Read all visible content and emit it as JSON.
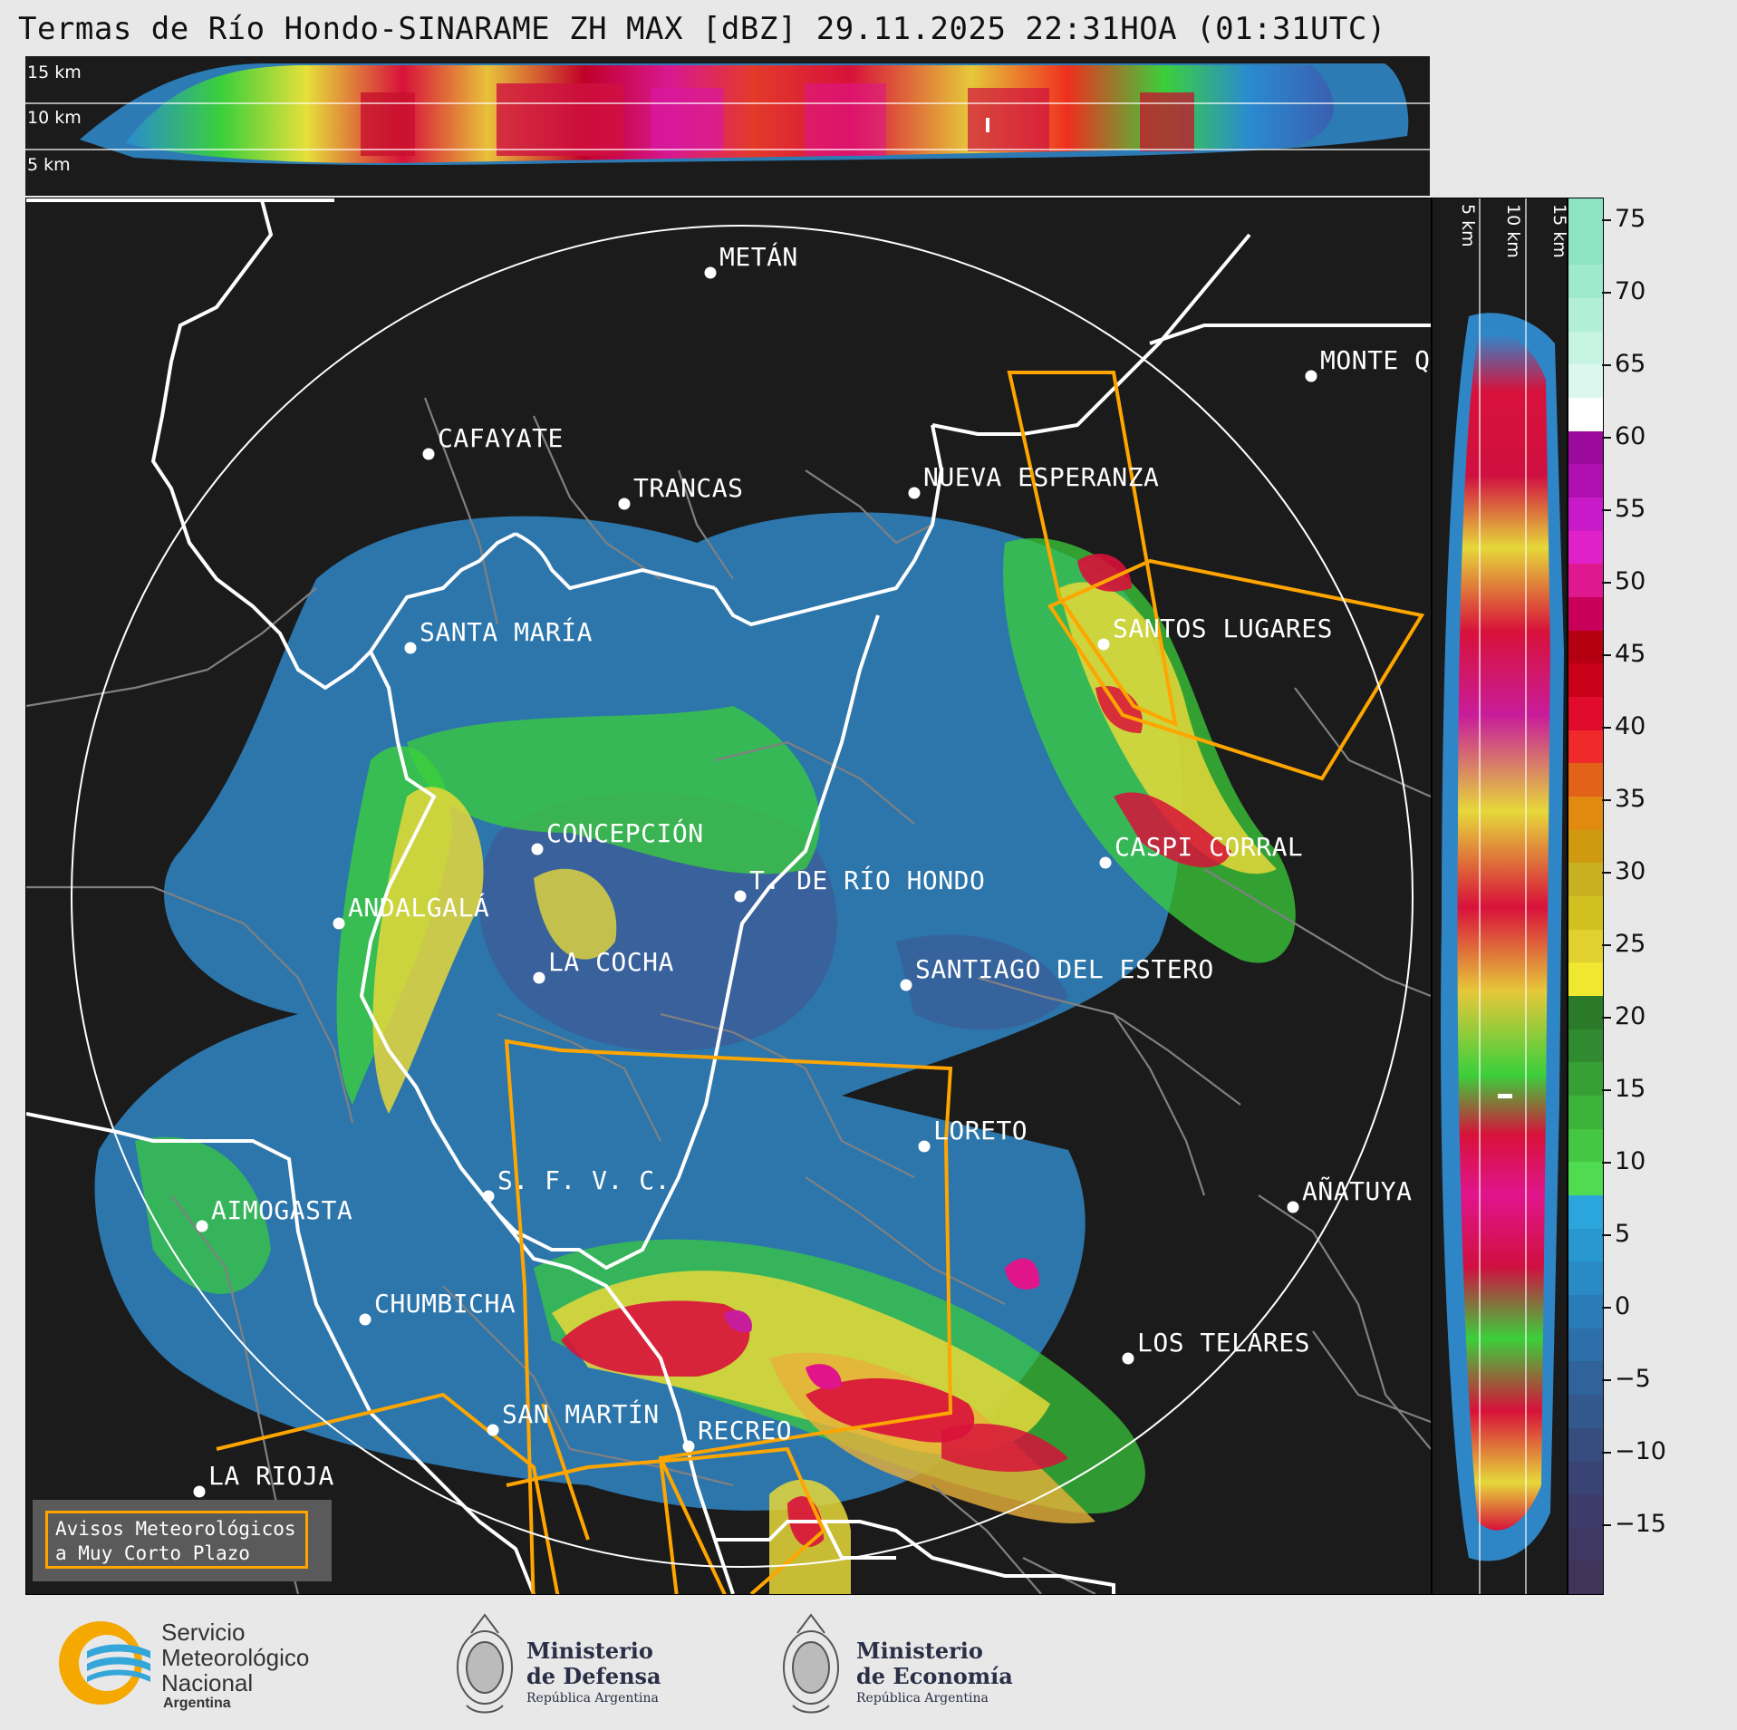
{
  "title": "Termas de Río Hondo-SINARAME ZH MAX [dBZ] 29.11.2025 22:31HOA (01:31UTC)",
  "top_xsec": {
    "labels": [
      "15 km",
      "10 km",
      "5 km"
    ]
  },
  "right_xsec": {
    "labels": [
      "5 km",
      "10 km",
      "15 km"
    ]
  },
  "colorbar": {
    "ticks": [
      "75",
      "70",
      "65",
      "60",
      "55",
      "50",
      "45",
      "40",
      "35",
      "30",
      "25",
      "20",
      "15",
      "10",
      "5",
      "0",
      "−5",
      "−10",
      "−15"
    ],
    "unit": "dBZ"
  },
  "cities": [
    "METÁN",
    "MONTE Q",
    "CAFAYATE",
    "TRANCAS",
    "NUEVA ESPERANZA",
    "SANTA MARÍA",
    "SANTOS LUGARES",
    "CONCEPCIÓN",
    "CASPI CORRAL",
    "T. DE RÍO HONDO",
    "ANDALGALÁ",
    "LA COCHA",
    "SANTIAGO DEL ESTERO",
    "LORETO",
    "S. F. V. C.",
    "AÑATUYA",
    "AIMOGASTA",
    "CHUMBICHA",
    "LOS TELARES",
    "SAN MARTÍN",
    "RECREO",
    "LA RIOJA"
  ],
  "legend": {
    "line1": "Avisos Meteorológicos",
    "line2": "a Muy Corto Plazo"
  },
  "logos": {
    "smn": {
      "line1": "Servicio",
      "line2": "Meteorológico",
      "line3": "Nacional",
      "line4": "Argentina"
    },
    "defensa": {
      "line1": "Ministerio",
      "line2": "de Defensa",
      "line3": "República Argentina"
    },
    "economia": {
      "line1": "Ministerio",
      "line2": "de Economía",
      "line3": "República Argentina"
    }
  },
  "colors": {
    "background": "#1b1b1b",
    "boundary_province": "#ffffff",
    "boundary_department": "#808080",
    "warning_polygon": "#ffa500",
    "range_ring": "#ffffff"
  }
}
